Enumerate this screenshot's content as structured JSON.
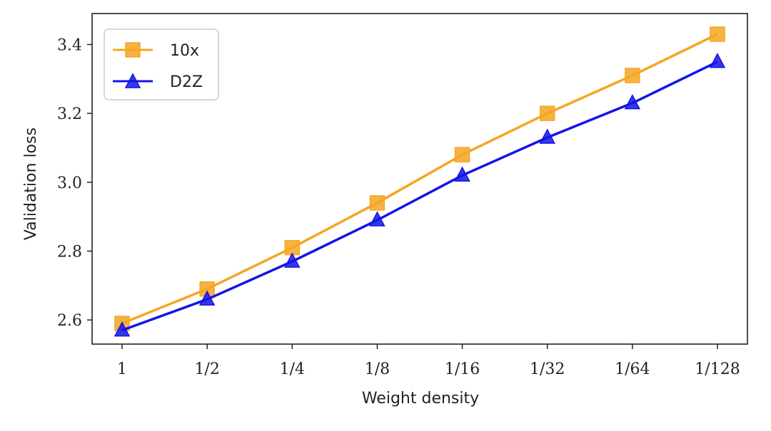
{
  "chart_data": {
    "type": "line",
    "title": "",
    "xlabel": "Weight density",
    "ylabel": "Validation loss",
    "categories": [
      "1",
      "1/2",
      "1/4",
      "1/8",
      "1/16",
      "1/32",
      "1/64",
      "1/128"
    ],
    "ylim": [
      2.53,
      3.49
    ],
    "yticks": [
      "2.6",
      "2.8",
      "3.0",
      "3.2",
      "3.4"
    ],
    "legend_position": "top-left",
    "grid": false,
    "series": [
      {
        "name": "10x",
        "color": "#f5a623",
        "marker": "square",
        "values": [
          2.59,
          2.69,
          2.81,
          2.94,
          3.08,
          3.2,
          3.31,
          3.43
        ]
      },
      {
        "name": "D2Z",
        "color": "#1414e6",
        "marker": "triangle",
        "values": [
          2.57,
          2.66,
          2.77,
          2.89,
          3.02,
          3.13,
          3.23,
          3.35
        ]
      }
    ]
  }
}
